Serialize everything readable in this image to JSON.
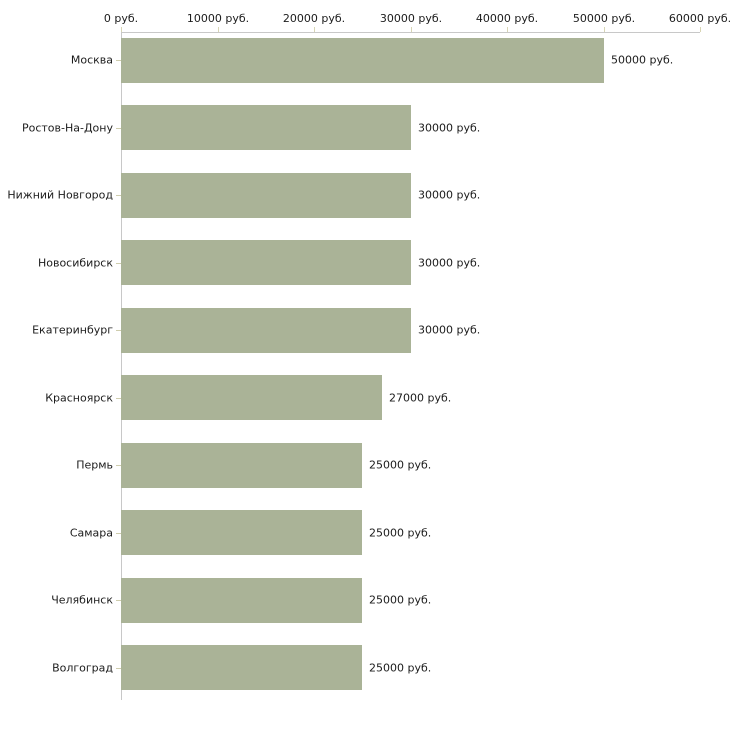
{
  "chart_data": {
    "type": "bar",
    "orientation": "horizontal",
    "title": "",
    "xlabel": "",
    "ylabel": "",
    "categories": [
      "Москва",
      "Ростов-На-Дону",
      "Нижний Новгород",
      "Новосибирск",
      "Екатеринбург",
      "Красноярск",
      "Пермь",
      "Самара",
      "Челябинск",
      "Волгоград"
    ],
    "values": [
      50000,
      30000,
      30000,
      30000,
      30000,
      27000,
      25000,
      25000,
      25000,
      25000
    ],
    "value_labels": [
      "50000 руб.",
      "30000 руб.",
      "30000 руб.",
      "30000 руб.",
      "30000 руб.",
      "27000 руб.",
      "25000 руб.",
      "25000 руб.",
      "25000 руб.",
      "25000 руб."
    ],
    "xlim": [
      0,
      60000
    ],
    "x_ticks": [
      0,
      10000,
      20000,
      30000,
      40000,
      50000,
      60000
    ],
    "x_tick_labels": [
      "0 руб.",
      "10000 руб.",
      "20000 руб.",
      "30000 руб.",
      "40000 руб.",
      "50000 руб.",
      "60000 руб."
    ],
    "grid": false,
    "legend": null,
    "axis_position": "top",
    "colors": {
      "bar_fill": "#aab397",
      "axis_line": "#c8c8c8",
      "axis_tick": "#d8d5b4",
      "category_tick": "#cfcdae",
      "text": "#1c1c1c",
      "background": "#ffffff"
    }
  }
}
